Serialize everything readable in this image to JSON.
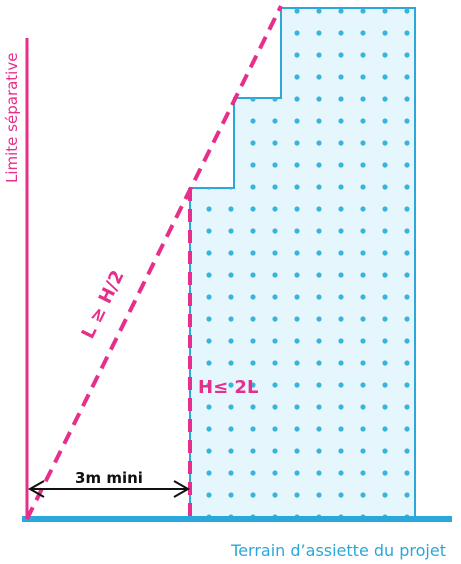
{
  "labels": {
    "limite": "Limite séparative",
    "terrain": "Terrain d’assiette du projet",
    "height_rule": "L ≥ H/2",
    "length_rule": "H≤ 2L",
    "distance": "3m mini"
  },
  "colors": {
    "magenta": "#e62e8a",
    "blue": "#2aa7db",
    "building_fill": "#e6f6fd",
    "dots": "#39b3e0",
    "arrow": "#111111"
  }
}
